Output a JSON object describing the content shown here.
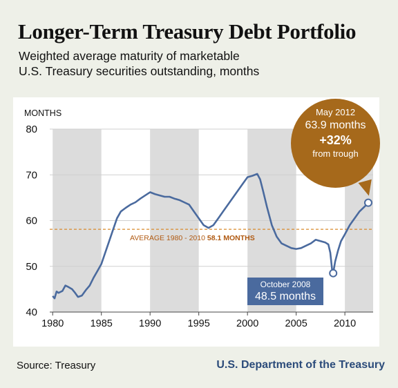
{
  "header": {
    "title": "Longer-Term Treasury Debt Portfolio",
    "subtitle_line1": "Weighted average maturity of marketable",
    "subtitle_line2": "U.S. Treasury securities outstanding, months"
  },
  "footer": {
    "source": "Source: Treasury",
    "publisher": "U.S. Department of the Treasury"
  },
  "colors": {
    "line": "#4a6a9e",
    "band": "#dcdcdc",
    "average": "#d98a2b",
    "callout": "#a6691b"
  },
  "chart_data": {
    "type": "line",
    "title": "Longer-Term Treasury Debt Portfolio",
    "ylabel": "MONTHS",
    "xlim": [
      1979.7,
      2012.9
    ],
    "ylim": [
      40,
      80
    ],
    "yticks": [
      40,
      50,
      60,
      70,
      80
    ],
    "xticks": [
      1980,
      1985,
      1990,
      1995,
      2000,
      2005,
      2010
    ],
    "ytick_labels": [
      "40",
      "50",
      "60",
      "70",
      "80"
    ],
    "xtick_labels": [
      "1980",
      "1985",
      "1990",
      "1995",
      "2000",
      "2005",
      "2010"
    ],
    "shaded_bands": [
      [
        1980,
        1985
      ],
      [
        1990,
        1995
      ],
      [
        2000,
        2005
      ],
      [
        2010,
        2012.9
      ]
    ],
    "average_line": {
      "value": 58.1,
      "label": "AVERAGE 1980 - 2010",
      "value_label": "58.1 MONTHS"
    },
    "series": [
      {
        "x": [
          1980.0,
          1980.2,
          1980.4,
          1980.6,
          1981.0,
          1981.3,
          1981.6,
          1982.0,
          1982.3,
          1982.6,
          1983.0,
          1983.4,
          1983.8,
          1984.2,
          1984.6,
          1985.0,
          1985.4,
          1985.8,
          1986.2,
          1986.6,
          1987.0,
          1987.5,
          1988.0,
          1988.5,
          1989.0,
          1989.5,
          1990.0,
          1990.5,
          1991.0,
          1991.5,
          1992.0,
          1992.5,
          1993.0,
          1993.5,
          1994.0,
          1994.5,
          1995.0,
          1995.5,
          1996.0,
          1996.5,
          1997.0,
          1997.5,
          1998.0,
          1998.5,
          1999.0,
          1999.5,
          2000.0,
          2000.5,
          2001.0,
          2001.3,
          2001.6,
          2002.0,
          2002.5,
          2003.0,
          2003.5,
          2004.0,
          2004.5,
          2005.0,
          2005.5,
          2006.0,
          2006.5,
          2007.0,
          2007.5,
          2008.0,
          2008.3,
          2008.5,
          2008.7,
          2008.8,
          2009.0,
          2009.3,
          2009.6,
          2010.0,
          2010.5,
          2011.0,
          2011.5,
          2012.0,
          2012.4
        ],
        "y": [
          43.5,
          43.0,
          44.5,
          44.2,
          44.6,
          45.8,
          45.5,
          45.0,
          44.2,
          43.3,
          43.6,
          44.8,
          45.8,
          47.5,
          49.0,
          50.5,
          53.0,
          55.5,
          58.0,
          60.5,
          62.0,
          62.8,
          63.5,
          64.0,
          64.8,
          65.5,
          66.2,
          65.8,
          65.5,
          65.2,
          65.2,
          64.8,
          64.5,
          64.0,
          63.5,
          62.0,
          60.5,
          59.0,
          58.4,
          59.0,
          60.5,
          62.0,
          63.5,
          65.0,
          66.5,
          68.0,
          69.5,
          69.8,
          70.2,
          69.0,
          66.5,
          63.0,
          59.0,
          56.5,
          55.0,
          54.5,
          54.0,
          53.8,
          54.0,
          54.5,
          55.0,
          55.8,
          55.5,
          55.2,
          54.8,
          53.0,
          49.0,
          48.5,
          51.0,
          53.5,
          55.5,
          57.0,
          59.0,
          60.5,
          62.0,
          63.0,
          63.9
        ]
      }
    ],
    "annotations": [
      {
        "line1": "May 2012",
        "line2": "63.9 months",
        "line3": "+32%",
        "line4": "from trough",
        "x": 2012.4,
        "y": 63.9
      },
      {
        "line1": "October 2008",
        "line2": "48.5 months",
        "x": 2008.8,
        "y": 48.5
      }
    ]
  }
}
